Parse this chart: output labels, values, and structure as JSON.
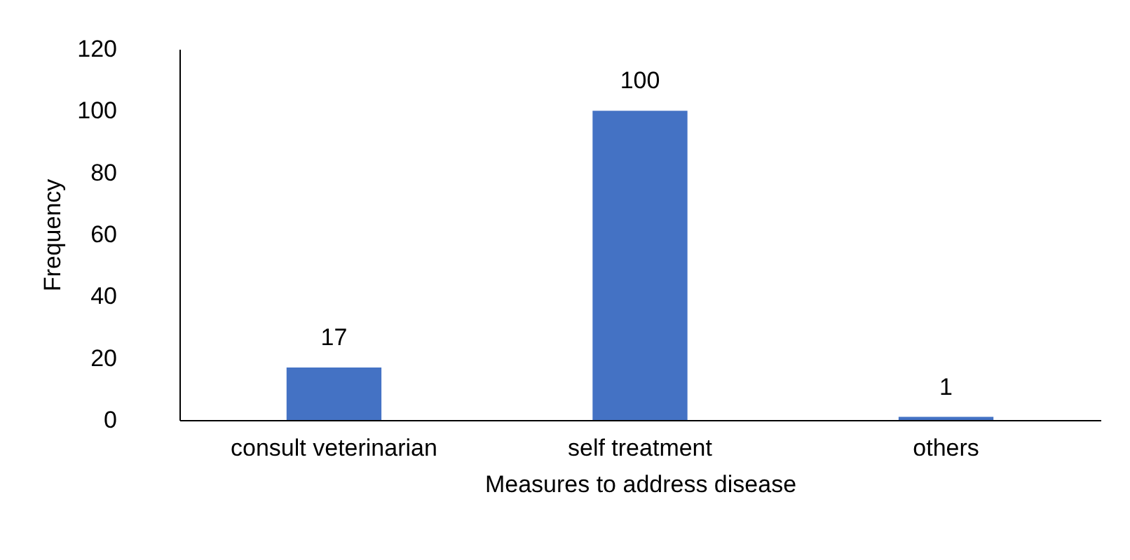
{
  "chart_data": {
    "type": "bar",
    "xlabel": "Measures to address disease",
    "ylabel": "Frequency",
    "categories": [
      "consult veterinarian",
      "self treatment",
      "others"
    ],
    "values": [
      17,
      100,
      1
    ],
    "color": "#4472c4",
    "ylim": [
      0,
      120
    ],
    "yticks": [
      0,
      20,
      40,
      60,
      80,
      100,
      120
    ],
    "grid": false,
    "data_labels": true
  }
}
